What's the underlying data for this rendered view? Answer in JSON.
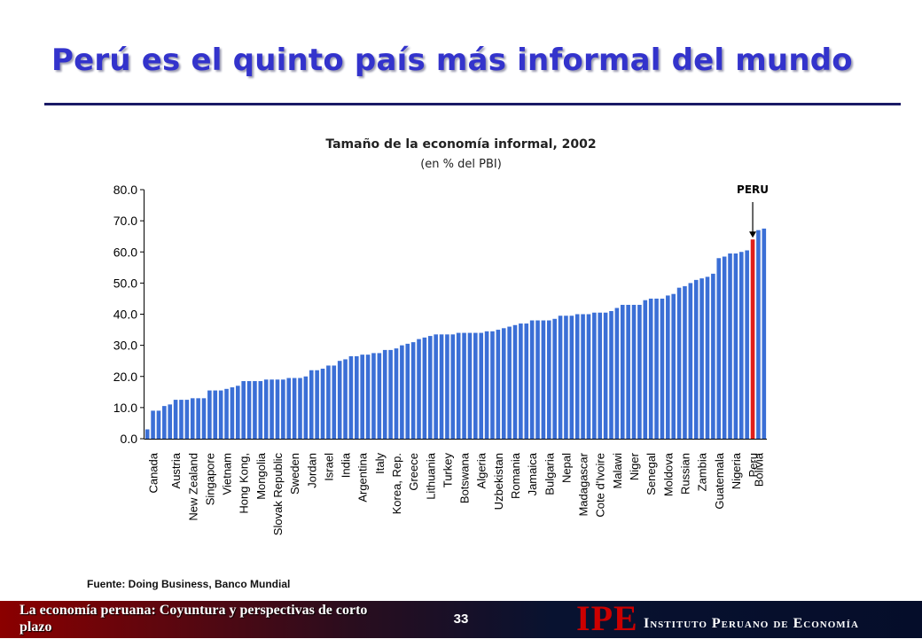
{
  "slide": {
    "title": "Perú es el quinto país más informal del mundo",
    "source": "Fuente: Doing Business, Banco Mundial",
    "footer_left": "La economía peruana: Coyuntura y perspectivas de corto plazo",
    "page_number": "33",
    "logo_text": "IPE",
    "institute_name": "Instituto Peruano de Economía"
  },
  "colors": {
    "title": "#3333cc",
    "bar": "#3b6fd6",
    "highlight_bar": "#e0201b",
    "footer_left": "#8b0000",
    "footer_right": "#050d2a"
  },
  "chart_data": {
    "type": "bar",
    "title": "Tamaño de la economía informal, 2002",
    "subtitle": "(en % del PBI)",
    "ylim": [
      0,
      80
    ],
    "yticks": [
      "0.0",
      "10.0",
      "20.0",
      "30.0",
      "40.0",
      "50.0",
      "60.0",
      "70.0",
      "80.0"
    ],
    "grid": false,
    "annotation": {
      "text": "PERU",
      "target": "Peru",
      "arrow": "down"
    },
    "highlight": "Peru",
    "values": [
      3.0,
      9.0,
      9.0,
      10.5,
      11.0,
      12.5,
      12.5,
      12.5,
      13.0,
      13.0,
      13.0,
      15.5,
      15.5,
      15.5,
      16.0,
      16.5,
      17.0,
      18.5,
      18.5,
      18.5,
      18.5,
      19.0,
      19.0,
      19.0,
      19.0,
      19.5,
      19.5,
      19.5,
      20.0,
      22.0,
      22.0,
      22.5,
      23.5,
      23.5,
      25.0,
      25.5,
      26.5,
      26.5,
      27.0,
      27.0,
      27.5,
      27.5,
      28.5,
      28.5,
      29.0,
      30.0,
      30.5,
      31.0,
      32.0,
      32.5,
      33.0,
      33.5,
      33.5,
      33.5,
      33.5,
      34.0,
      34.0,
      34.0,
      34.0,
      34.0,
      34.5,
      34.5,
      35.0,
      35.5,
      36.0,
      36.5,
      37.0,
      37.0,
      38.0,
      38.0,
      38.0,
      38.0,
      38.5,
      39.5,
      39.5,
      39.5,
      40.0,
      40.0,
      40.0,
      40.5,
      40.5,
      40.5,
      41.0,
      42.0,
      43.0,
      43.0,
      43.0,
      43.0,
      44.5,
      45.0,
      45.0,
      45.0,
      46.0,
      46.5,
      48.5,
      49.0,
      50.0,
      51.0,
      51.5,
      52.0,
      53.0,
      58.0,
      58.5,
      59.5,
      59.5,
      60.0,
      60.5,
      64.0,
      67.0,
      67.5
    ],
    "x_labels": [
      "Canada",
      "Austria",
      "New Zealand",
      "Singapore",
      "Vietnam",
      "Hong Kong,",
      "Mongolia",
      "Slovak Republic",
      "Sweden",
      "Jordan",
      "Israel",
      "India",
      "Argentina",
      "Italy",
      "Korea, Rep.",
      "Greece",
      "Lithuania",
      "Turkey",
      "Botswana",
      "Algeria",
      "Uzbekistan",
      "Romania",
      "Jamaica",
      "Bulgaria",
      "Nepal",
      "Madagascar",
      "Cote d'Ivoire",
      "Malawi",
      "Niger",
      "Senegal",
      "Moldova",
      "Russian",
      "Zambia",
      "Guatemala",
      "Nigeria",
      "Peru",
      "Bolivia"
    ],
    "x_label_bar_index": [
      1,
      5,
      8,
      11,
      14,
      17,
      20,
      23,
      26,
      29,
      32,
      35,
      38,
      41,
      44,
      47,
      50,
      53,
      56,
      59,
      62,
      65,
      68,
      71,
      74,
      77,
      80,
      83,
      86,
      89,
      92,
      95,
      98,
      101,
      104,
      107,
      108
    ]
  }
}
